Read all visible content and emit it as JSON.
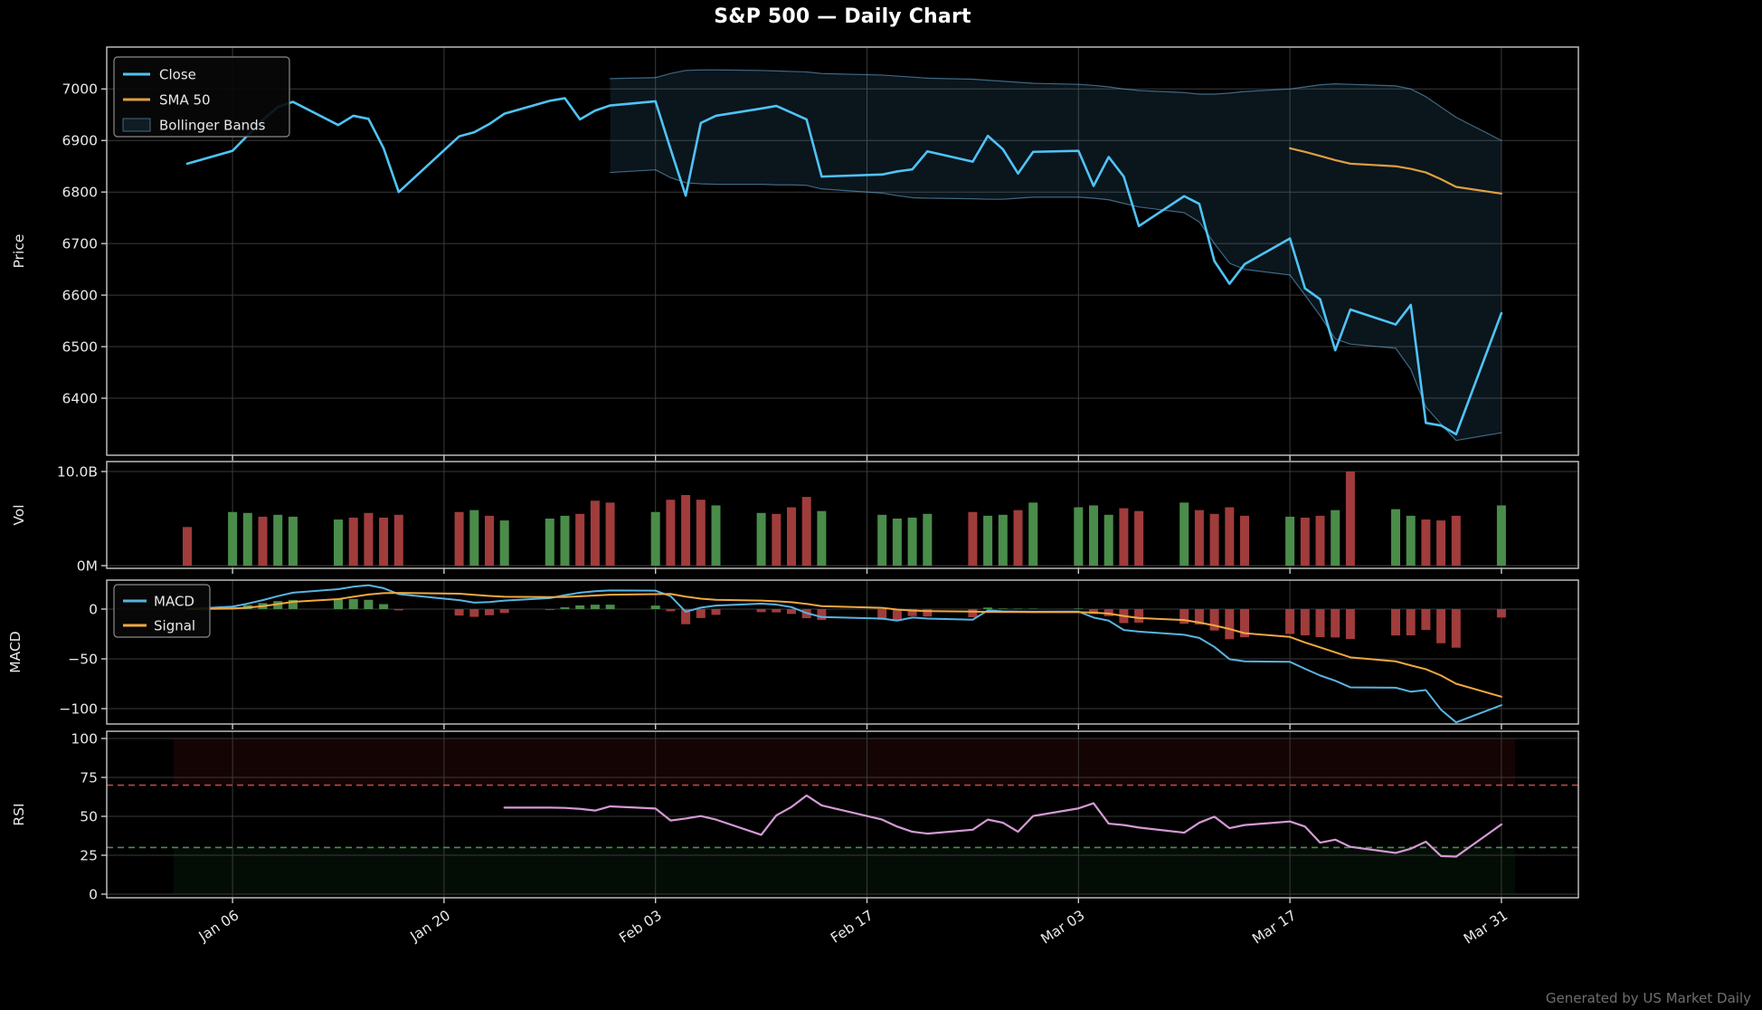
{
  "title": "S&P 500 — Daily Chart",
  "footer": "Generated by US Market Daily",
  "colors": {
    "background": "#000000",
    "grid": "#3a3a3a",
    "spine": "#c9c9c9",
    "text": "#e8e8e8",
    "footer_text": "#6f6f6f",
    "close": "#4fc3f7",
    "sma50": "#dd9f40",
    "bollinger_fill": "rgba(80,170,230,0.12)",
    "bollinger_edge": "rgba(110,180,225,0.55)",
    "volume_up": "#4a8c4a",
    "volume_down": "#a03c3c",
    "macd_line": "#58b4e0",
    "signal_line": "#f0a840",
    "hist_up": "#4a8c4a",
    "hist_down": "#a03c3c",
    "rsi_line": "#d49ad4",
    "rsi_overbought_line": "#b84a44",
    "rsi_oversold_line": "#4e8b4e",
    "rsi_overbought_zone": "rgba(150,30,30,0.14)",
    "rsi_oversold_zone": "rgba(30,110,45,0.12)"
  },
  "chart_data": {
    "type": "line",
    "title": "S&P 500 — Daily Chart",
    "x_tick_labels": [
      "Jan 06",
      "Jan 20",
      "Feb 03",
      "Feb 17",
      "Mar 03",
      "Mar 17",
      "Mar 31"
    ],
    "panels": [
      {
        "name": "price",
        "ylabel": "Price",
        "yticks": [
          7000,
          6900,
          6800,
          6700,
          6600,
          6500,
          6400
        ]
      },
      {
        "name": "volume",
        "ylabel": "Vol",
        "yticks_labels": [
          "10.0B",
          "0M"
        ]
      },
      {
        "name": "macd",
        "ylabel": "MACD",
        "yticks": [
          0,
          -50,
          -100
        ],
        "ytick_labels": [
          "0",
          "−50",
          "−100"
        ]
      },
      {
        "name": "rsi",
        "ylabel": "RSI",
        "yticks": [
          100,
          75,
          50,
          25,
          0
        ]
      }
    ],
    "legend_price": [
      "Close",
      "SMA 50",
      "Bollinger Bands"
    ],
    "legend_macd": [
      "MACD",
      "Signal"
    ],
    "dates": [
      "Jan 03",
      "Jan 06",
      "Jan 07",
      "Jan 08",
      "Jan 09",
      "Jan 10",
      "Jan 13",
      "Jan 14",
      "Jan 15",
      "Jan 16",
      "Jan 17",
      "Jan 21",
      "Jan 22",
      "Jan 23",
      "Jan 24",
      "Jan 27",
      "Jan 28",
      "Jan 29",
      "Jan 30",
      "Jan 31",
      "Feb 03",
      "Feb 04",
      "Feb 05",
      "Feb 06",
      "Feb 07",
      "Feb 10",
      "Feb 11",
      "Feb 12",
      "Feb 13",
      "Feb 14",
      "Feb 18",
      "Feb 19",
      "Feb 20",
      "Feb 21",
      "Feb 24",
      "Feb 25",
      "Feb 26",
      "Feb 27",
      "Feb 28",
      "Mar 03",
      "Mar 04",
      "Mar 05",
      "Mar 06",
      "Mar 07",
      "Mar 10",
      "Mar 11",
      "Mar 12",
      "Mar 13",
      "Mar 14",
      "Mar 17",
      "Mar 18",
      "Mar 19",
      "Mar 20",
      "Mar 21",
      "Mar 24",
      "Mar 25",
      "Mar 26",
      "Mar 27",
      "Mar 28",
      "Mar 31"
    ],
    "close": [
      6855,
      6880,
      6910,
      6940,
      6965,
      6975,
      6930,
      6948,
      6942,
      6885,
      6800,
      6908,
      6916,
      6932,
      6952,
      6977,
      6982,
      6941,
      6958,
      6968,
      6976,
      6883,
      6793,
      6934,
      6948,
      6962,
      6967,
      6954,
      6941,
      6830,
      6834,
      6840,
      6844,
      6879,
      6859,
      6909,
      6883,
      6836,
      6878,
      6880,
      6812,
      6868,
      6830,
      6734,
      6792,
      6777,
      6666,
      6622,
      6660,
      6710,
      6613,
      6592,
      6493,
      6572,
      6543,
      6581,
      6352,
      6347,
      6330,
      6565
    ],
    "sma50_start_index": 49,
    "sma50": [
      6885,
      6878,
      6870,
      6862,
      6855,
      6850,
      6845,
      6838,
      6825,
      6810,
      6797,
      6786
    ],
    "bollinger_start_index": 19,
    "bollinger_upper": [
      7020,
      7022,
      7030,
      7036,
      7037,
      7037,
      7036,
      7035,
      7034,
      7033,
      7030,
      7027,
      7025,
      7023,
      7021,
      7019,
      7017,
      7015,
      7013,
      7011,
      7009,
      7007,
      7004,
      7000,
      6997,
      6993,
      6990,
      6990,
      6992,
      6995,
      7000,
      7004,
      7008,
      7010,
      7009,
      7006,
      7000,
      6985,
      6965,
      6945,
      6900
    ],
    "bollinger_lower": [
      6838,
      6843,
      6828,
      6818,
      6816,
      6815,
      6815,
      6814,
      6814,
      6813,
      6806,
      6798,
      6793,
      6789,
      6788,
      6787,
      6786,
      6786,
      6788,
      6790,
      6790,
      6788,
      6785,
      6778,
      6771,
      6760,
      6742,
      6700,
      6662,
      6650,
      6639,
      6600,
      6560,
      6515,
      6505,
      6497,
      6456,
      6383,
      6350,
      6318,
      6333
    ],
    "volume_billions": [
      4.1,
      5.7,
      5.6,
      5.2,
      5.4,
      5.2,
      4.9,
      5.1,
      5.6,
      5.1,
      5.4,
      5.7,
      5.9,
      5.3,
      4.8,
      5.0,
      5.3,
      5.5,
      6.9,
      6.7,
      5.7,
      7.0,
      7.5,
      7.0,
      6.4,
      5.6,
      5.5,
      6.2,
      7.3,
      5.8,
      5.4,
      5.0,
      5.1,
      5.5,
      5.7,
      5.3,
      5.4,
      5.9,
      6.7,
      6.2,
      6.4,
      5.4,
      6.1,
      5.8,
      6.7,
      5.9,
      5.5,
      6.2,
      5.3,
      5.2,
      5.1,
      5.3,
      5.9,
      10.0,
      6.0,
      5.3,
      4.9,
      4.8,
      5.3,
      6.4
    ],
    "volume_dir": [
      "d",
      "u",
      "u",
      "d",
      "u",
      "u",
      "u",
      "d",
      "d",
      "d",
      "d",
      "d",
      "u",
      "d",
      "u",
      "u",
      "u",
      "d",
      "d",
      "d",
      "u",
      "d",
      "d",
      "d",
      "u",
      "u",
      "d",
      "d",
      "d",
      "u",
      "u",
      "u",
      "u",
      "u",
      "d",
      "u",
      "u",
      "d",
      "u",
      "u",
      "u",
      "u",
      "d",
      "d",
      "u",
      "d",
      "d",
      "d",
      "d",
      "u",
      "d",
      "d",
      "u",
      "d",
      "u",
      "u",
      "d",
      "d",
      "d",
      "u"
    ],
    "macd": [
      0,
      2.5,
      5.5,
      9,
      13,
      16.5,
      20,
      22.5,
      24,
      21,
      15,
      9,
      6.5,
      7,
      8.5,
      11,
      14,
      16.5,
      18,
      18.8,
      18.5,
      13,
      -2.7,
      1.5,
      3.5,
      5.4,
      4.5,
      2,
      -4,
      -8,
      -9.5,
      -11.6,
      -8.5,
      -9.5,
      -10.7,
      -1.3,
      -2.3,
      -2.5,
      -2.6,
      -2.5,
      -8.5,
      -11.6,
      -21,
      -22.6,
      -25.8,
      -29,
      -38,
      -50.3,
      -52.5,
      -53,
      -60,
      -66.7,
      -72,
      -78.6,
      -79,
      -83,
      -81.4,
      -101,
      -113.8,
      -96.5
    ],
    "signal": [
      0,
      0.5,
      1.5,
      3,
      5,
      7.3,
      10,
      12.4,
      14.7,
      16,
      16.3,
      15.5,
      14.3,
      13.2,
      12.4,
      12,
      12.2,
      12.8,
      13.6,
      14.4,
      15,
      15.2,
      12.5,
      10.5,
      9.3,
      8.5,
      7.8,
      6.9,
      5.2,
      3,
      1.2,
      -0.5,
      -1.5,
      -2,
      -2.5,
      -2.8,
      -2.9,
      -3,
      -3.1,
      -3.1,
      -3.5,
      -4.5,
      -6.9,
      -9,
      -11,
      -13.5,
      -16.5,
      -20,
      -24.2,
      -28,
      -33.6,
      -38.5,
      -43.5,
      -48.5,
      -52.5,
      -56.6,
      -60.4,
      -66.7,
      -75,
      -88
    ],
    "rsi_start_index": 14,
    "rsi": [
      55.6,
      55.6,
      55.4,
      54.8,
      53.7,
      56.4,
      55.0,
      47.3,
      48.6,
      50.2,
      47.9,
      38.1,
      50.6,
      56.0,
      63.4,
      57.0,
      47.9,
      43.4,
      40.1,
      38.9,
      41.4,
      47.9,
      45.9,
      40.1,
      50.2,
      55.1,
      58.4,
      45.3,
      44.4,
      42.8,
      39.5,
      45.9,
      49.8,
      42.4,
      44.4,
      46.7,
      43.4,
      33.1,
      35.0,
      30.4,
      26.5,
      29.2,
      33.7,
      24.5,
      24.1,
      44.8
    ],
    "rsi_overbought": 70,
    "rsi_oversold": 30,
    "volume_axis_max_label": "10.0B",
    "volume_axis_min_label": "0M"
  }
}
